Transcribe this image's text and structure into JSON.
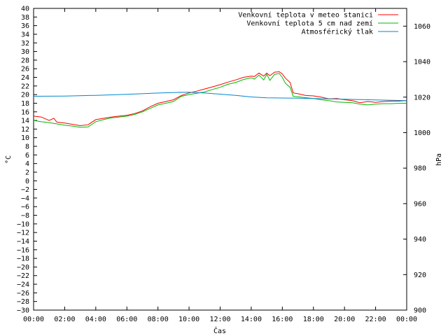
{
  "chart_data": {
    "type": "line",
    "title": "",
    "xlabel": "Čas",
    "ylabel": "°C",
    "y2label": "hPa",
    "xlim": [
      0,
      24
    ],
    "ylim": [
      -30,
      40
    ],
    "y2lim": [
      900,
      1070
    ],
    "x_ticks": [
      "00:00",
      "02:00",
      "04:00",
      "06:00",
      "08:00",
      "10:00",
      "12:00",
      "14:00",
      "16:00",
      "18:00",
      "20:00",
      "22:00",
      "00:00"
    ],
    "y_ticks": [
      -30,
      -28,
      -26,
      -24,
      -22,
      -20,
      -18,
      -16,
      -14,
      -12,
      -10,
      -8,
      -6,
      -4,
      -2,
      0,
      2,
      4,
      6,
      8,
      10,
      12,
      14,
      16,
      18,
      20,
      22,
      24,
      26,
      28,
      30,
      32,
      34,
      36,
      38,
      40
    ],
    "y2_ticks": [
      900,
      920,
      940,
      960,
      980,
      1000,
      1020,
      1040,
      1060
    ],
    "grid": false,
    "legend": "top-right",
    "x_units": "hours",
    "series": [
      {
        "name": "Venkovní teplota v meteo stanici",
        "axis": "y",
        "color": "#ff0000",
        "x": [
          0,
          0.5,
          1,
          1.3,
          1.5,
          2,
          2.5,
          3,
          3.5,
          4,
          4.5,
          5,
          5.5,
          6,
          6.5,
          7,
          7.5,
          8,
          8.5,
          9,
          9.5,
          10,
          10.5,
          11,
          11.5,
          12,
          12.5,
          13,
          13.5,
          14,
          14.2,
          14.5,
          14.8,
          15,
          15.2,
          15.5,
          15.8,
          16,
          16.2,
          16.5,
          16.7,
          17,
          17.5,
          18,
          18.5,
          19,
          19.5,
          20,
          20.5,
          21,
          21.5,
          22,
          22.5,
          23,
          23.5,
          24
        ],
        "y": [
          15,
          14.8,
          14,
          14.5,
          13.6,
          13.4,
          13.1,
          12.8,
          13,
          14.2,
          14.5,
          14.8,
          15,
          15.2,
          15.6,
          16.2,
          17.2,
          18,
          18.4,
          18.8,
          19.8,
          20.4,
          20.8,
          21.3,
          21.8,
          22.3,
          22.9,
          23.4,
          24,
          24.3,
          24.2,
          25,
          24.3,
          25,
          24.4,
          25.2,
          25.3,
          24.8,
          23.8,
          22.8,
          20.4,
          20.2,
          19.8,
          19.7,
          19.4,
          19,
          19.1,
          18.8,
          18.6,
          18.1,
          18.4,
          18.2,
          18.4,
          18.5,
          18.5,
          18.6
        ]
      },
      {
        "name": "Venkovní teplota 5 cm nad zemí",
        "axis": "y",
        "color": "#00bb00",
        "x": [
          0,
          0.5,
          1,
          1.5,
          2,
          2.5,
          3,
          3.5,
          4,
          4.5,
          5,
          5.5,
          6,
          6.5,
          7,
          7.5,
          8,
          8.5,
          9,
          9.5,
          10,
          10.5,
          11,
          11.5,
          12,
          12.5,
          13,
          13.5,
          14,
          14.2,
          14.5,
          14.8,
          15,
          15.2,
          15.5,
          15.8,
          16,
          16.2,
          16.5,
          16.7,
          17,
          17.5,
          18,
          18.5,
          19,
          19.5,
          20,
          20.5,
          21,
          21.5,
          22,
          22.5,
          23,
          23.5,
          24
        ],
        "y": [
          14,
          13.7,
          13.5,
          13.2,
          12.9,
          12.7,
          12.4,
          12.5,
          13.7,
          14.2,
          14.6,
          14.8,
          15,
          15.4,
          16,
          16.8,
          17.6,
          18,
          18.4,
          19.6,
          20,
          20.3,
          20.6,
          21.2,
          21.7,
          22.4,
          22.8,
          23.5,
          23.9,
          23.6,
          24.5,
          23.4,
          24.7,
          23.3,
          24.7,
          24.9,
          24,
          22.6,
          21.7,
          19.6,
          19.5,
          19.3,
          19.1,
          18.8,
          18.6,
          18.3,
          18.2,
          18.1,
          17.8,
          17.6,
          17.8,
          17.9,
          17.9,
          18,
          18
        ]
      },
      {
        "name": "Atmosférický tlak",
        "axis": "y2",
        "color": "#0088cc",
        "x": [
          0,
          2,
          4,
          6,
          8,
          9,
          10,
          11,
          12,
          13,
          14,
          15,
          16,
          17,
          18,
          19,
          20,
          21,
          22,
          23,
          24
        ],
        "y": [
          1020.5,
          1020.6,
          1021,
          1021.6,
          1022.3,
          1022.6,
          1022.8,
          1022.3,
          1021.7,
          1021,
          1020.1,
          1019.6,
          1019.5,
          1019.4,
          1019.2,
          1019,
          1018.8,
          1018.6,
          1018.4,
          1018.2,
          1018
        ]
      }
    ]
  }
}
